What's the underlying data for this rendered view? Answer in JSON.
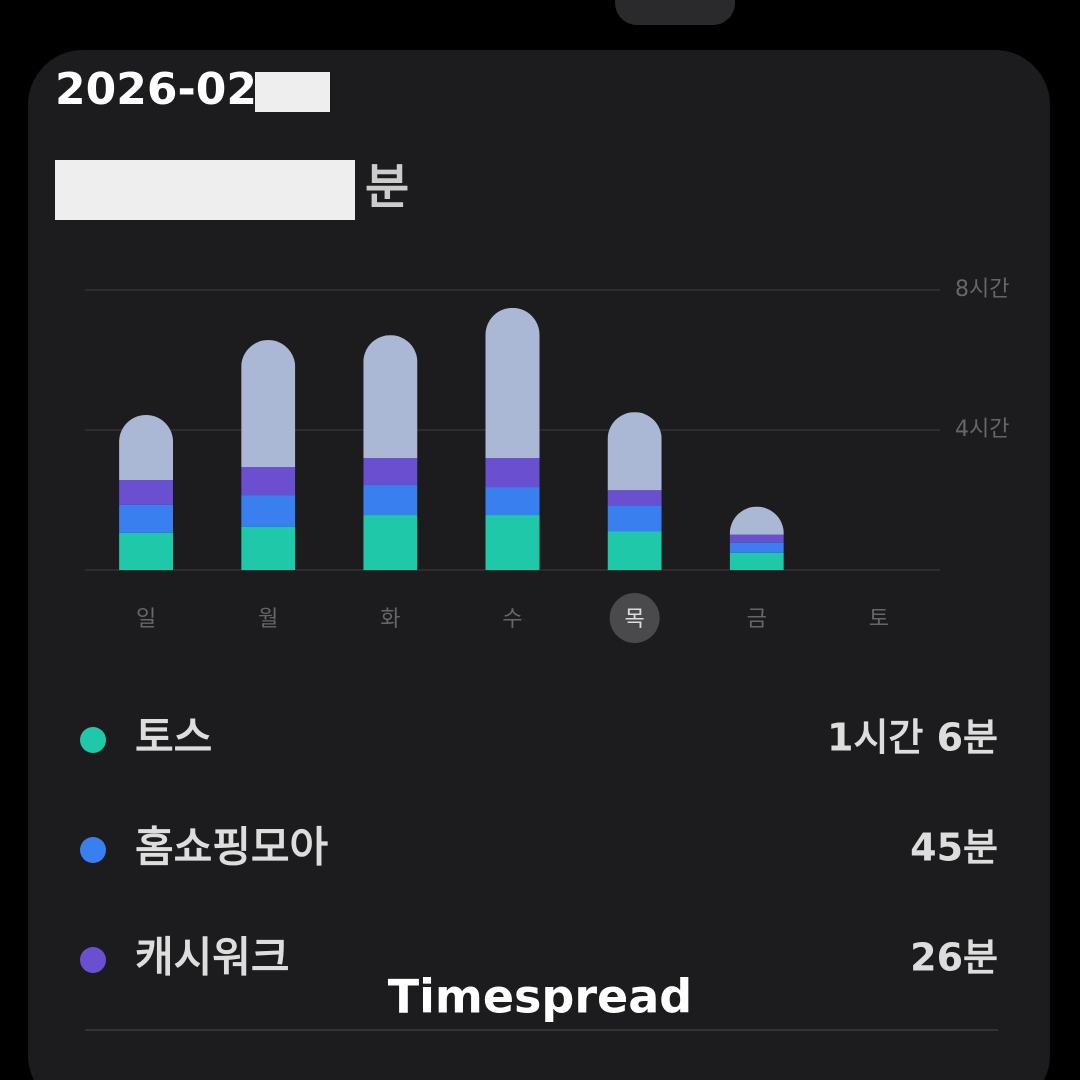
{
  "header": {
    "date": "2026-02-",
    "total_suffix": "분"
  },
  "chart_data": {
    "type": "stacked-bar",
    "categories": [
      "일",
      "월",
      "화",
      "수",
      "목",
      "금",
      "토"
    ],
    "selected": 4,
    "ylim": [
      0,
      8
    ],
    "yticks": [
      {
        "value": 4,
        "label": "4시간"
      },
      {
        "value": 8,
        "label": "8시간"
      }
    ],
    "grid": true,
    "series": [
      {
        "name": "토스",
        "color": "#1fc8a8",
        "total_label": "1시간 6분",
        "values": [
          1.06,
          1.23,
          1.57,
          1.57,
          1.1,
          0.49,
          null
        ]
      },
      {
        "name": "홈쇼핑모아",
        "color": "#3a7ff0",
        "total_label": "45분",
        "values": [
          0.8,
          0.91,
          0.86,
          0.8,
          0.75,
          0.29,
          null
        ]
      },
      {
        "name": "캐시워크",
        "color": "#6a4fd0",
        "total_label": "26분",
        "values": [
          0.71,
          0.8,
          0.77,
          0.83,
          0.43,
          0.23,
          null
        ]
      },
      {
        "color": "#aab8d6",
        "values": [
          1.86,
          3.63,
          3.51,
          4.29,
          2.23,
          0.8,
          null
        ]
      }
    ]
  },
  "watermark": "Timespread"
}
